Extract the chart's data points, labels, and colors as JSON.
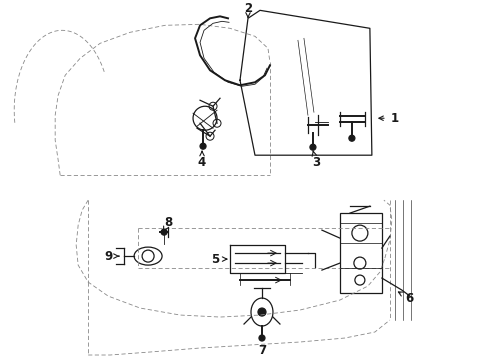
{
  "bg_color": "#ffffff",
  "line_color": "#1a1a1a",
  "dashed_color": "#888888",
  "fig_width": 4.9,
  "fig_height": 3.6,
  "dpi": 100
}
